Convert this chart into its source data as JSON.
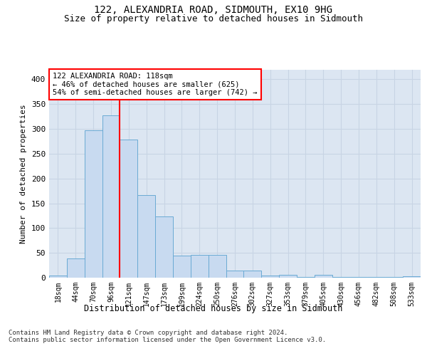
{
  "title1": "122, ALEXANDRIA ROAD, SIDMOUTH, EX10 9HG",
  "title2": "Size of property relative to detached houses in Sidmouth",
  "xlabel": "Distribution of detached houses by size in Sidmouth",
  "ylabel": "Number of detached properties",
  "categories": [
    "18sqm",
    "44sqm",
    "70sqm",
    "96sqm",
    "121sqm",
    "147sqm",
    "173sqm",
    "199sqm",
    "224sqm",
    "250sqm",
    "276sqm",
    "302sqm",
    "327sqm",
    "353sqm",
    "379sqm",
    "405sqm",
    "430sqm",
    "456sqm",
    "482sqm",
    "508sqm",
    "533sqm"
  ],
  "values": [
    4,
    39,
    297,
    328,
    278,
    167,
    123,
    44,
    46,
    46,
    15,
    15,
    5,
    6,
    1,
    6,
    1,
    1,
    1,
    1,
    3
  ],
  "bar_color": "#c8daf0",
  "bar_edge_color": "#6aaad4",
  "grid_color": "#c8d4e4",
  "background_color": "#dce6f2",
  "vline_color": "red",
  "vline_x_index": 4,
  "annotation_text": "122 ALEXANDRIA ROAD: 118sqm\n← 46% of detached houses are smaller (625)\n54% of semi-detached houses are larger (742) →",
  "annotation_box_color": "white",
  "annotation_box_edge": "red",
  "footer": "Contains HM Land Registry data © Crown copyright and database right 2024.\nContains public sector information licensed under the Open Government Licence v3.0.",
  "ylim": [
    0,
    420
  ],
  "yticks": [
    0,
    50,
    100,
    150,
    200,
    250,
    300,
    350,
    400
  ]
}
